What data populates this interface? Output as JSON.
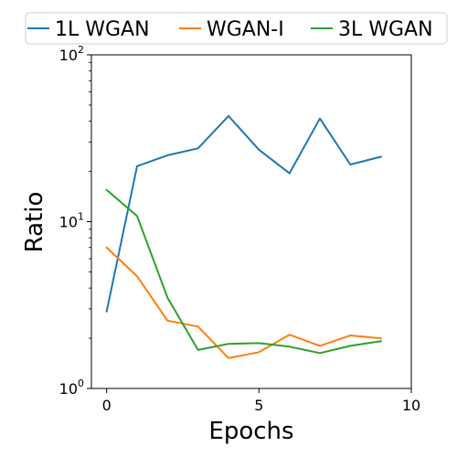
{
  "chart_data": {
    "type": "line",
    "title": "",
    "xlabel": "Epochs",
    "ylabel": "Ratio",
    "xlim": [
      -0.5,
      10
    ],
    "ylim": [
      1,
      100
    ],
    "yscale": "log",
    "x_ticks": [
      0,
      5,
      10
    ],
    "y_ticks": [
      {
        "value": 1,
        "base": "10",
        "exp": "0"
      },
      {
        "value": 10,
        "base": "10",
        "exp": "1"
      },
      {
        "value": 100,
        "base": "10",
        "exp": "2"
      }
    ],
    "grid": false,
    "legend_position": "top",
    "x": [
      0,
      1,
      2,
      3,
      4,
      5,
      6,
      7,
      8,
      9
    ],
    "series": [
      {
        "name": "1L WGAN",
        "color": "#1f77b4",
        "values": [
          2.9,
          21.5,
          25.0,
          27.5,
          43.0,
          27.0,
          19.5,
          41.5,
          22.0,
          24.5
        ]
      },
      {
        "name": "WGAN-I",
        "color": "#ff7f0e",
        "values": [
          7.0,
          4.7,
          2.55,
          2.35,
          1.52,
          1.65,
          2.1,
          1.8,
          2.08,
          2.0
        ]
      },
      {
        "name": "3L WGAN",
        "color": "#2ca02c",
        "values": [
          15.5,
          10.8,
          3.5,
          1.7,
          1.85,
          1.87,
          1.78,
          1.63,
          1.8,
          1.92
        ]
      }
    ]
  }
}
